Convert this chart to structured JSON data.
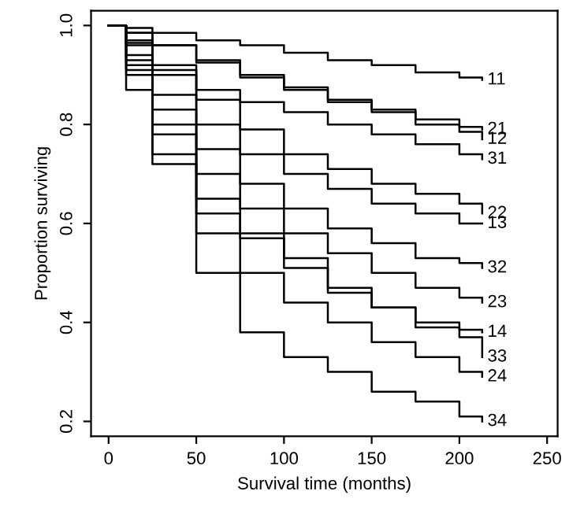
{
  "chart_data": {
    "type": "step",
    "xlabel": "Survival time (months)",
    "ylabel": "Proportion surviving",
    "x": [
      0,
      10,
      25,
      50,
      75,
      100,
      125,
      150,
      175,
      200,
      213
    ],
    "series": [
      {
        "name": "11",
        "color": "#000000",
        "values": [
          1.0,
          0.995,
          0.985,
          0.97,
          0.96,
          0.945,
          0.93,
          0.92,
          0.905,
          0.895,
          0.89
        ]
      },
      {
        "name": "21",
        "color": "#000000",
        "values": [
          1.0,
          0.985,
          0.96,
          0.93,
          0.9,
          0.875,
          0.85,
          0.83,
          0.81,
          0.795,
          0.79
        ]
      },
      {
        "name": "12",
        "color": "#000000",
        "values": [
          1.0,
          0.985,
          0.96,
          0.925,
          0.895,
          0.87,
          0.845,
          0.825,
          0.8,
          0.785,
          0.77
        ]
      },
      {
        "name": "31",
        "color": "#000000",
        "values": [
          1.0,
          0.97,
          0.92,
          0.87,
          0.845,
          0.825,
          0.8,
          0.78,
          0.76,
          0.74,
          0.73
        ]
      },
      {
        "name": "22",
        "color": "#000000",
        "values": [
          1.0,
          0.965,
          0.91,
          0.85,
          0.79,
          0.74,
          0.71,
          0.68,
          0.66,
          0.64,
          0.62
        ]
      },
      {
        "name": "13",
        "color": "#000000",
        "values": [
          1.0,
          0.96,
          0.9,
          0.8,
          0.74,
          0.7,
          0.67,
          0.64,
          0.62,
          0.6,
          0.6
        ]
      },
      {
        "name": "32",
        "color": "#000000",
        "values": [
          1.0,
          0.94,
          0.86,
          0.75,
          0.68,
          0.63,
          0.59,
          0.56,
          0.53,
          0.52,
          0.51
        ]
      },
      {
        "name": "23",
        "color": "#000000",
        "values": [
          1.0,
          0.93,
          0.83,
          0.7,
          0.63,
          0.58,
          0.54,
          0.5,
          0.47,
          0.45,
          0.44
        ]
      },
      {
        "name": "14",
        "color": "#000000",
        "values": [
          1.0,
          0.92,
          0.8,
          0.65,
          0.57,
          0.51,
          0.46,
          0.43,
          0.4,
          0.385,
          0.38
        ]
      },
      {
        "name": "33",
        "color": "#000000",
        "values": [
          1.0,
          0.91,
          0.78,
          0.62,
          0.58,
          0.53,
          0.47,
          0.43,
          0.39,
          0.37,
          0.33
        ]
      },
      {
        "name": "24",
        "color": "#000000",
        "values": [
          1.0,
          0.9,
          0.74,
          0.58,
          0.5,
          0.44,
          0.4,
          0.36,
          0.33,
          0.3,
          0.29
        ]
      },
      {
        "name": "34",
        "color": "#000000",
        "values": [
          1.0,
          0.87,
          0.72,
          0.5,
          0.38,
          0.33,
          0.3,
          0.26,
          0.24,
          0.21,
          0.2
        ]
      }
    ],
    "xlim": [
      -10,
      256
    ],
    "ylim": [
      0.17,
      1.03
    ],
    "xticks": [
      0,
      50,
      100,
      150,
      200,
      250
    ],
    "yticks": [
      {
        "value": 0.2,
        "label": "0.2"
      },
      {
        "value": 0.4,
        "label": "0.4"
      },
      {
        "value": 0.6,
        "label": "0.6"
      },
      {
        "value": 0.8,
        "label": "0.8"
      },
      {
        "value": 1.0,
        "label": "1.0"
      }
    ],
    "grid": false,
    "legend": false
  }
}
